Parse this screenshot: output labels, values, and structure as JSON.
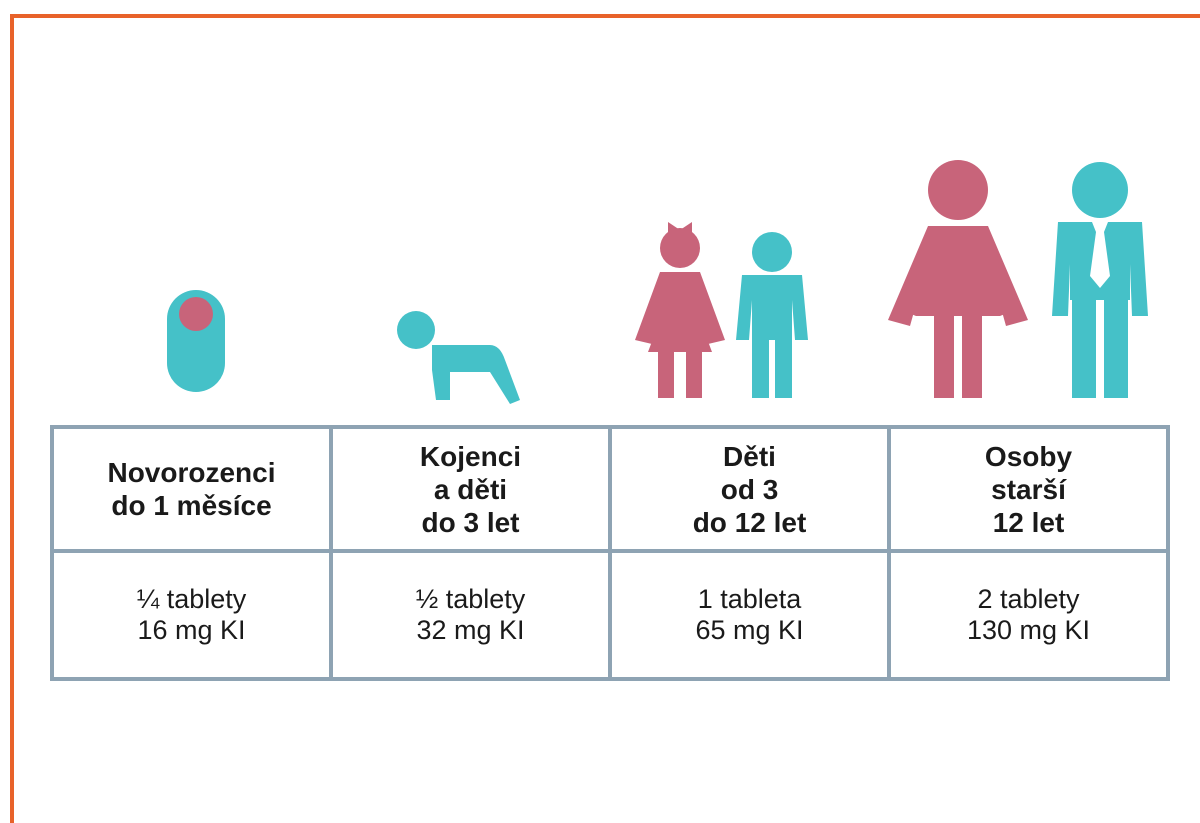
{
  "table": {
    "columns": [
      {
        "header": [
          "Novorozenci",
          "do 1 měsíce"
        ],
        "dose": [
          "¼ tablety",
          "16 mg KI"
        ]
      },
      {
        "header": [
          "Kojenci",
          "a děti",
          "do 3 let"
        ],
        "dose": [
          "½ tablety",
          "32 mg KI"
        ]
      },
      {
        "header": [
          "Děti",
          "od 3",
          "do 12 let"
        ],
        "dose": [
          "1 tableta",
          "65 mg KI"
        ]
      },
      {
        "header": [
          "Osoby",
          "starší",
          "12 let"
        ],
        "dose": [
          "2 tablety",
          "130 mg KI"
        ]
      }
    ]
  }
}
